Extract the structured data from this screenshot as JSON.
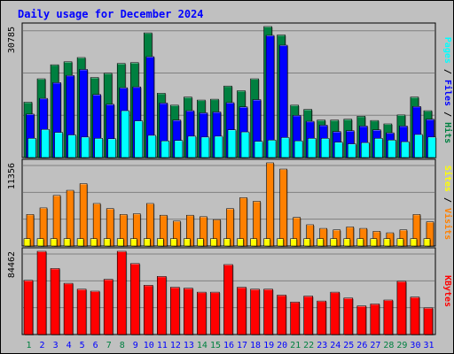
{
  "chart_data": {
    "type": "bar",
    "title": "Daily usage for December 2024",
    "days": [
      "1",
      "2",
      "3",
      "4",
      "5",
      "6",
      "7",
      "8",
      "9",
      "10",
      "11",
      "12",
      "13",
      "14",
      "15",
      "16",
      "17",
      "18",
      "19",
      "20",
      "21",
      "22",
      "23",
      "24",
      "25",
      "26",
      "27",
      "28",
      "29",
      "30",
      "31"
    ],
    "weekend_days": [
      "1",
      "7",
      "8",
      "14",
      "15",
      "21",
      "22",
      "28",
      "29"
    ],
    "panels": [
      {
        "id": "hits-files-pages",
        "max_label": "30785",
        "ymax": 30785,
        "series": [
          {
            "name": "Hits",
            "color": "#008040",
            "values": [
              13000,
              18500,
              21800,
              22500,
              23500,
              18800,
              19800,
              22100,
              22300,
              29300,
              15100,
              12300,
              14200,
              13500,
              13700,
              16800,
              15700,
              18500,
              30785,
              28800,
              12300,
              11300,
              8800,
              8800,
              9000,
              9700,
              8700,
              7900,
              10000,
              14200,
              11000
            ]
          },
          {
            "name": "Files",
            "color": "#0000ff",
            "values": [
              10200,
              13900,
              17600,
              19300,
              20700,
              14800,
              12500,
              16400,
              16600,
              23700,
              12800,
              8800,
              11000,
              10500,
              10700,
              12900,
              11900,
              13600,
              28700,
              26400,
              9900,
              8500,
              7600,
              6100,
              6300,
              7400,
              6500,
              5800,
              7400,
              12000,
              9000
            ]
          },
          {
            "name": "Pages",
            "color": "#00ffff",
            "values": [
              4500,
              6600,
              5900,
              5300,
              4800,
              4500,
              4400,
              11000,
              8600,
              5200,
              3900,
              4000,
              5000,
              4800,
              5000,
              6500,
              6000,
              3800,
              4100,
              4700,
              3900,
              4500,
              4500,
              3600,
              3200,
              3500,
              4500,
              4100,
              3700,
              5400,
              4800
            ]
          }
        ]
      },
      {
        "id": "visits-sites",
        "max_label": "11356",
        "ymax": 11356,
        "series": [
          {
            "name": "Visits",
            "color": "#ff8000",
            "values": [
              4300,
              5200,
              6900,
              7600,
              8500,
              5800,
              5100,
              4300,
              4400,
              5800,
              4200,
              3400,
              4200,
              4000,
              3600,
              5100,
              6600,
              6100,
              11356,
              10500,
              3900,
              2900,
              2400,
              2200,
              2600,
              2400,
              2000,
              1800,
              2200,
              4300,
              3300
            ]
          },
          {
            "name": "Sites",
            "color": "#ffff00",
            "values": [
              1000,
              1000,
              1000,
              1000,
              1000,
              1000,
              1000,
              1000,
              1000,
              1000,
              1000,
              1000,
              1000,
              1000,
              1000,
              1000,
              1000,
              1000,
              1000,
              1000,
              1000,
              1000,
              1000,
              1000,
              1000,
              1000,
              1000,
              1000,
              1000,
              1000,
              1000
            ]
          }
        ]
      },
      {
        "id": "kbytes",
        "max_label": "84462",
        "ymax": 84462,
        "series": [
          {
            "name": "KBytes",
            "color": "#ff0000",
            "values": [
              55000,
              84462,
              67000,
              52000,
              46000,
              44000,
              56000,
              84462,
              72000,
              50000,
              59000,
              48000,
              47000,
              43000,
              43000,
              71000,
              48000,
              46000,
              46000,
              40000,
              33000,
              39000,
              34000,
              43000,
              37000,
              29000,
              31000,
              35000,
              54000,
              38000,
              27000
            ]
          }
        ]
      }
    ],
    "side_labels": {
      "top": [
        {
          "text": "Pages",
          "color": "#00ffff"
        },
        {
          "text": " / ",
          "color": "#000000"
        },
        {
          "text": "Files",
          "color": "#0000ff"
        },
        {
          "text": " / ",
          "color": "#000000"
        },
        {
          "text": "Hits",
          "color": "#008040"
        }
      ],
      "middle": [
        {
          "text": "Sites",
          "color": "#ffff00"
        },
        {
          "text": " / ",
          "color": "#000000"
        },
        {
          "text": "Visits",
          "color": "#ff8000"
        }
      ],
      "bottom": [
        {
          "text": "KBytes",
          "color": "#ff0000"
        }
      ]
    },
    "colors": {
      "title": "#0000ff",
      "plot_bg": "#c0c0c0",
      "grid": "#808080",
      "weekday_label": "#0000ff",
      "weekend_label": "#008040"
    }
  }
}
